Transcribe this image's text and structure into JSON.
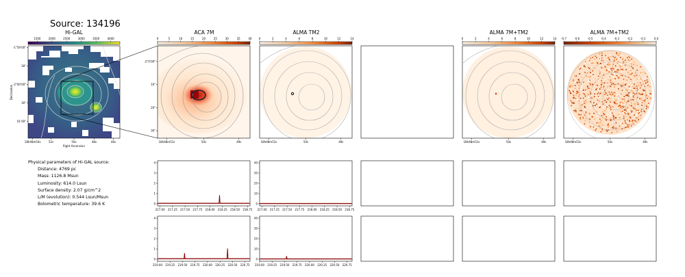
{
  "figure": {
    "title": "Source: 134196",
    "column_titles": [
      "Hi-GAL",
      "ACA 7M",
      "ALMA TM2",
      "ALMA 7M+TM2",
      "ALMA 7M+TM2"
    ]
  },
  "params": {
    "heading": "Physical parameters of Hi-GAL source:",
    "lines": [
      "Distance: 4769 pc",
      "Mass: 1126.8 Msun",
      "Luminosity: 614.0 Lsun",
      "Surface density: 2.07 g/cm^2",
      "L/M (evolution): 0.544 Lsun/Msun",
      "Bolometric temperature: 39.6 K"
    ]
  },
  "colors": {
    "viridis": [
      "#440154",
      "#3b528b",
      "#21918c",
      "#5ec962",
      "#fde725"
    ],
    "ylorrd": [
      "#fff5eb",
      "#fdd0a2",
      "#fd8d3c",
      "#d94801",
      "#7f2704"
    ],
    "spectrum_line": "#8b0000"
  },
  "chart_data": [
    {
      "type": "heatmap",
      "title": "Hi-GAL",
      "colorbar_ticks": [
        "1500",
        "2000",
        "2500",
        "3000",
        "3500",
        "4000"
      ],
      "ra_ticks": [
        "18h48m54s",
        "52s",
        "50s",
        "48s",
        "46s"
      ],
      "dec_ticks": [
        "-1°59'00\"",
        "30\"",
        "-2°00'00\"",
        "30\"",
        "01'00\""
      ],
      "xlabel": "Right Ascension",
      "ylabel": "Declination"
    },
    {
      "type": "heatmap",
      "title": "ACA 7M",
      "colorbar_ticks": [
        "0",
        "5",
        "10",
        "15",
        "20",
        "25",
        "30",
        "35",
        "40"
      ],
      "ra_ticks": [
        "18h48m51s",
        "50s",
        "49s"
      ],
      "dec_ticks": [
        "-2°0'00\"",
        "10\"",
        "20\"",
        "30\""
      ]
    },
    {
      "type": "heatmap",
      "title": "ALMA TM2",
      "colorbar_ticks": [
        "0",
        "2",
        "4",
        "6",
        "8",
        "10",
        "12",
        "14"
      ],
      "ra_ticks": [
        "18h48m51s",
        "50s",
        "49s"
      ]
    },
    {
      "type": "heatmap",
      "title": "ALMA 7M+TM2",
      "colorbar_ticks": [
        "0",
        "2",
        "4",
        "6",
        "8",
        "10",
        "12",
        "14"
      ],
      "ra_ticks": [
        "18h48m51s",
        "50s",
        "49s"
      ]
    },
    {
      "type": "heatmap",
      "title": "ALMA 7M+TM2",
      "colorbar_ticks": [
        "-0.7",
        "-0.6",
        "-0.5",
        "-0.4",
        "-0.3",
        "-0.2",
        "-0.1",
        "0.0"
      ],
      "ra_ticks": [
        "18h48m51s",
        "50s",
        "49s"
      ]
    },
    {
      "type": "line",
      "panel": "spectrum ACA 7M upper",
      "xlim": [
        216.95,
        218.8
      ],
      "ylim": [
        0,
        4
      ],
      "x_ticks": [
        "217.00",
        "217.25",
        "217.50",
        "217.75",
        "218.00",
        "218.25",
        "218.50",
        "218.75"
      ],
      "y_ticks": [
        "0",
        "1",
        "2",
        "3",
        "4"
      ],
      "series": [
        {
          "x": [
            216.95,
            218.18,
            218.19,
            218.2,
            218.8
          ],
          "y": [
            0.05,
            0.05,
            0.85,
            0.05,
            0.05
          ]
        }
      ]
    },
    {
      "type": "line",
      "panel": "spectrum ALMA TM2 upper",
      "xlim": [
        216.95,
        218.8
      ],
      "ylim": [
        0,
        40
      ],
      "x_ticks": [
        "217.00",
        "217.25",
        "217.50",
        "217.75",
        "218.00",
        "218.25",
        "218.50",
        "218.75"
      ],
      "y_ticks": [
        "0",
        "10",
        "20",
        "30",
        "40"
      ],
      "series": [
        {
          "x": [
            216.95,
            218.8
          ],
          "y": [
            0.3,
            0.3
          ]
        }
      ]
    },
    {
      "type": "line",
      "panel": "spectrum ACA 7M lower",
      "xlim": [
        219.0,
        220.85
      ],
      "ylim": [
        0,
        4
      ],
      "x_ticks": [
        "219.00",
        "219.25",
        "219.50",
        "219.75",
        "220.00",
        "220.25",
        "220.50",
        "220.75"
      ],
      "y_ticks": [
        "0",
        "1",
        "2",
        "3",
        "4"
      ],
      "series": [
        {
          "x": [
            219.0,
            219.53,
            219.54,
            219.55,
            220.39,
            220.4,
            220.41,
            220.85
          ],
          "y": [
            0.05,
            0.05,
            0.6,
            0.05,
            0.05,
            1.05,
            0.05,
            0.05
          ]
        }
      ]
    },
    {
      "type": "line",
      "panel": "spectrum ALMA TM2 lower",
      "xlim": [
        219.0,
        220.85
      ],
      "ylim": [
        0,
        40
      ],
      "x_ticks": [
        "219.00",
        "219.25",
        "219.50",
        "219.75",
        "220.00",
        "220.25",
        "220.50",
        "220.75"
      ],
      "y_ticks": [
        "0",
        "10",
        "20",
        "30",
        "40"
      ],
      "series": [
        {
          "x": [
            219.0,
            219.53,
            219.54,
            219.55,
            220.85
          ],
          "y": [
            0.3,
            0.3,
            3,
            0.3,
            0.3
          ]
        }
      ]
    }
  ]
}
